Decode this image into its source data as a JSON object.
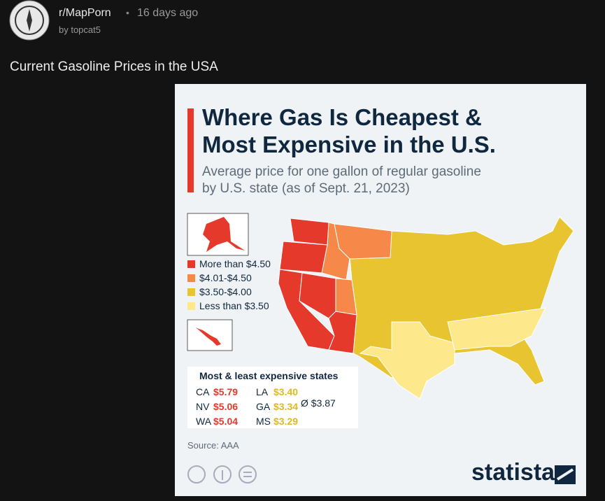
{
  "post": {
    "subreddit": "r/MapPorn",
    "separator": "•",
    "age": "16 days ago",
    "author": "by topcat5",
    "title": "Current Gasoline Prices in the USA"
  },
  "infographic": {
    "title": [
      "Where Gas Is Cheapest &",
      "Most Expensive in the U.S."
    ],
    "subtitle": [
      "Average price for one gallon of regular gasoline",
      "by U.S. state (as of Sept. 21, 2023)"
    ],
    "legend": [
      {
        "label": "More than $4.50",
        "color": "#e5392b"
      },
      {
        "label": "$4.01-$4.50",
        "color": "#f6894a"
      },
      {
        "label": "$3.50-$4.00",
        "color": "#e8c430"
      },
      {
        "label": "Less than $3.50",
        "color": "#fde98c"
      }
    ],
    "table": {
      "heading": "Most & least expensive states",
      "rows": [
        [
          {
            "state": "CA",
            "price": "$5.79"
          },
          {
            "state": "LA",
            "price": "$3.40"
          }
        ],
        [
          {
            "state": "NV",
            "price": "$5.06"
          },
          {
            "state": "GA",
            "price": "$3.34"
          }
        ],
        [
          {
            "state": "WA",
            "price": "$5.04"
          },
          {
            "state": "MS",
            "price": "$3.29"
          }
        ]
      ],
      "average": "Ø $3.87"
    },
    "source": "Source: AAA",
    "logo": "statista"
  }
}
